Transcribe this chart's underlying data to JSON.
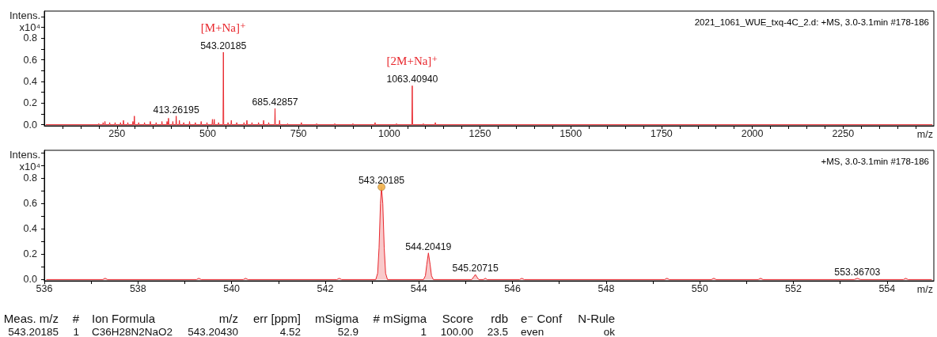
{
  "chart_data": [
    {
      "type": "line",
      "title": "2021_1061_WUE_txq-4C_2.d: +MS, 3.0-3.1min #178-186",
      "xlabel": "m/z",
      "ylabel": "Intens.\nx10⁴",
      "xlim": [
        50,
        2500
      ],
      "ylim": [
        -0.01,
        1.05
      ],
      "xticks": [
        {
          "value": 100,
          "label": null
        },
        {
          "value": 150,
          "label": null
        },
        {
          "value": 200,
          "label": null
        },
        250,
        {
          "value": 300,
          "label": null
        },
        {
          "value": 350,
          "label": null
        },
        {
          "value": 400,
          "label": null
        },
        {
          "value": 450,
          "label": null
        },
        500,
        {
          "value": 550,
          "label": null
        },
        {
          "value": 600,
          "label": null
        },
        {
          "value": 650,
          "label": null
        },
        {
          "value": 700,
          "label": null
        },
        750,
        {
          "value": 800,
          "label": null
        },
        {
          "value": 850,
          "label": null
        },
        {
          "value": 900,
          "label": null
        },
        {
          "value": 950,
          "label": null
        },
        1000,
        {
          "value": 1050,
          "label": null
        },
        {
          "value": 1100,
          "label": null
        },
        {
          "value": 1150,
          "label": null
        },
        {
          "value": 1200,
          "label": null
        },
        1250,
        {
          "value": 1300,
          "label": null
        },
        {
          "value": 1350,
          "label": null
        },
        {
          "value": 1400,
          "label": null
        },
        {
          "value": 1450,
          "label": null
        },
        1500,
        {
          "value": 1550,
          "label": null
        },
        {
          "value": 1600,
          "label": null
        },
        {
          "value": 1650,
          "label": null
        },
        {
          "value": 1700,
          "label": null
        },
        1750,
        {
          "value": 1800,
          "label": null
        },
        {
          "value": 1850,
          "label": null
        },
        {
          "value": 1900,
          "label": null
        },
        {
          "value": 1950,
          "label": null
        },
        2000,
        {
          "value": 2050,
          "label": null
        },
        {
          "value": 2100,
          "label": null
        },
        {
          "value": 2150,
          "label": null
        },
        {
          "value": 2200,
          "label": null
        },
        2250,
        {
          "value": 2300,
          "label": null
        },
        {
          "value": 2350,
          "label": null
        },
        {
          "value": 2400,
          "label": null
        },
        {
          "value": 2450,
          "label": null
        }
      ],
      "yticks": [
        {
          "value": 0,
          "label": "0.0"
        },
        {
          "value": 0.1,
          "label": null
        },
        0.2,
        {
          "value": 0.3,
          "label": null
        },
        0.4,
        {
          "value": 0.5,
          "label": null
        },
        0.6,
        {
          "value": 0.7,
          "label": null
        },
        0.8,
        {
          "value": 0.9,
          "label": null
        },
        {
          "value": 1,
          "label": null
        }
      ],
      "marker": "none",
      "series": [
        {
          "color": "#e8262c",
          "x": [
            55,
            199,
            200,
            201,
            211,
            212,
            213,
            216,
            217,
            218,
            229,
            230,
            231,
            244,
            245,
            246,
            259,
            260,
            261,
            267,
            268,
            269,
            279,
            280,
            281,
            293,
            294,
            295,
            297,
            298,
            299,
            309,
            310,
            311,
            325,
            326,
            327,
            341,
            342,
            343,
            357,
            358,
            359,
            373,
            374,
            375,
            387,
            388,
            389,
            391,
            392,
            393,
            403,
            404,
            405,
            412.3,
            413.26195,
            414.3,
            421,
            422,
            423,
            433,
            434,
            435,
            449,
            450,
            451,
            465,
            466,
            467,
            481,
            482,
            483,
            497,
            498,
            499,
            512,
            513,
            514,
            517,
            518,
            519,
            529,
            530,
            531,
            542.2,
            543.20185,
            544.2,
            555,
            556,
            557,
            564,
            565,
            566,
            579,
            580,
            581,
            599,
            600,
            601,
            607,
            608,
            609,
            621,
            622,
            623,
            639,
            640,
            641,
            653,
            654,
            655,
            667,
            668,
            669,
            684.4,
            685.42857,
            686.4,
            697,
            698,
            699,
            719,
            720,
            721,
            757,
            758,
            759,
            799,
            800,
            801,
            849,
            850,
            851,
            899,
            900,
            901,
            960,
            961,
            962,
            1019,
            1020,
            1021,
            1062.4,
            1063.4094,
            1064.4,
            1093,
            1094,
            1095,
            1126,
            1127,
            1128,
            2495
          ],
          "values": [
            0,
            0,
            0.01,
            0,
            0,
            0.02,
            0,
            0,
            0.03,
            0,
            0,
            0.02,
            0,
            0,
            0.02,
            0,
            0,
            0.02,
            0,
            0,
            0.04,
            0,
            0,
            0.02,
            0,
            0,
            0.03,
            0,
            0,
            0.08,
            0,
            0,
            0.02,
            0,
            0,
            0.02,
            0,
            0,
            0.03,
            0,
            0,
            0.02,
            0,
            0,
            0.03,
            0,
            0,
            0.03,
            0,
            0,
            0.06,
            0,
            0,
            0.03,
            0,
            0,
            0.08,
            0,
            0,
            0.04,
            0,
            0,
            0.02,
            0,
            0,
            0.03,
            0,
            0,
            0.02,
            0,
            0,
            0.03,
            0,
            0,
            0.02,
            0,
            0,
            0.05,
            0,
            0,
            0.05,
            0,
            0,
            0.02,
            0,
            0,
            0.67,
            0,
            0,
            0.02,
            0,
            0,
            0.04,
            0,
            0,
            0.02,
            0,
            0,
            0.02,
            0,
            0,
            0.04,
            0,
            0,
            0.02,
            0,
            0,
            0.02,
            0,
            0,
            0.04,
            0,
            0,
            0.02,
            0,
            0,
            0.15,
            0,
            0,
            0.04,
            0,
            0,
            0.01,
            0,
            0,
            0.02,
            0,
            0,
            0.01,
            0,
            0,
            0.01,
            0,
            0,
            0.01,
            0,
            0,
            0.02,
            0,
            0,
            0.01,
            0,
            0,
            0.36,
            0,
            0,
            0.01,
            0,
            0,
            0.02,
            0,
            0
          ]
        }
      ],
      "annotations": [
        {
          "text": "543.20185",
          "x": 543.20185,
          "y": 0.67
        },
        {
          "text": "[M+Na]⁺",
          "x": 543.20185,
          "y": 0.67
        },
        {
          "text": "413.26195",
          "x": 413.26195,
          "y": 0.08
        },
        {
          "text": "685.42857",
          "x": 685.42857,
          "y": 0.15
        },
        {
          "text": "1063.40940",
          "x": 1063.4094,
          "y": 0.36
        },
        {
          "text": "[2M+Na]⁺",
          "x": 1063.4094,
          "y": 0.36
        }
      ]
    },
    {
      "type": "area",
      "title": "+MS, 3.0-3.1min #178-186",
      "xlabel": "m/z",
      "ylabel": "Intens.\nx10⁴",
      "xlim": [
        536,
        555
      ],
      "ylim": [
        -0.01,
        1.02
      ],
      "xticks": [
        536,
        {
          "value": 537,
          "label": null
        },
        538,
        {
          "value": 539,
          "label": null
        },
        540,
        {
          "value": 541,
          "label": null
        },
        542,
        {
          "value": 543,
          "label": null
        },
        544,
        {
          "value": 545,
          "label": null
        },
        546,
        {
          "value": 547,
          "label": null
        },
        548,
        {
          "value": 549,
          "label": null
        },
        550,
        {
          "value": 551,
          "label": null
        },
        552,
        {
          "value": 553,
          "label": null
        },
        554
      ],
      "yticks": [
        {
          "value": 0,
          "label": "0.0"
        },
        {
          "value": 0.1,
          "label": null
        },
        0.2,
        {
          "value": 0.3,
          "label": null
        },
        0.4,
        {
          "value": 0.5,
          "label": null
        },
        0.6,
        {
          "value": 0.7,
          "label": null
        },
        0.8,
        {
          "value": 0.9,
          "label": null
        },
        {
          "value": 1,
          "label": null
        }
      ],
      "marker": "none",
      "series": [
        {
          "color": "#e8262c",
          "x": [
            536.05,
            537.25,
            537.3,
            537.35,
            539.25,
            539.3,
            539.35,
            540.25,
            540.3,
            540.35,
            542.25,
            542.3,
            542.35,
            543.08,
            543.12,
            543.15,
            543.18,
            543.20185,
            543.23,
            543.26,
            543.29,
            543.33,
            544.1,
            544.14,
            544.17,
            544.20419,
            544.24,
            544.27,
            544.31,
            545.13,
            545.17,
            545.20715,
            545.24,
            545.28,
            545.38,
            545.42,
            545.46,
            546.15,
            546.2,
            546.25,
            549.25,
            549.3,
            549.35,
            550.25,
            550.3,
            550.35,
            551.25,
            551.3,
            551.35,
            553.3,
            553.36703,
            553.43,
            554.35,
            554.4,
            554.45,
            554.95
          ],
          "values": [
            0,
            0,
            0.01,
            0,
            0,
            0.01,
            0,
            0,
            0.01,
            0,
            0,
            0.01,
            0,
            0,
            0.05,
            0.25,
            0.6,
            0.73,
            0.6,
            0.25,
            0.05,
            0,
            0,
            0.03,
            0.12,
            0.21,
            0.12,
            0.03,
            0,
            0,
            0.02,
            0.04,
            0.02,
            0,
            0,
            0.01,
            0,
            0,
            0.01,
            0,
            0,
            0.01,
            0,
            0,
            0.01,
            0,
            0,
            0.01,
            0,
            0,
            0.01,
            0,
            0,
            0.01,
            0,
            0
          ]
        },
        {
          "type": "scatter",
          "marker": "circle",
          "color": "#f0b048",
          "x": [
            543.20185
          ],
          "values": [
            0.73
          ]
        }
      ],
      "annotations": [
        {
          "text": "543.20185",
          "x": 543.20185,
          "y": 0.73
        },
        {
          "text": "544.20419",
          "x": 544.20419,
          "y": 0.21
        },
        {
          "text": "545.20715",
          "x": 545.20715,
          "y": 0.04
        },
        {
          "text": "553.36703",
          "x": 553.36703,
          "y": 0.01
        },
        "Meas. m/z",
        "#",
        "Ion Formula",
        "m/z",
        "err [ppm]",
        "mSigma",
        "# mSigma",
        "Score",
        "rdb",
        "e⁻ Conf",
        "N-Rule",
        "543.20185",
        "1",
        "C36H28N2NaO2",
        "543.20430",
        "4.52",
        "52.9",
        "1",
        "100.00",
        "23.5",
        "even",
        "ok"
      ]
    }
  ]
}
